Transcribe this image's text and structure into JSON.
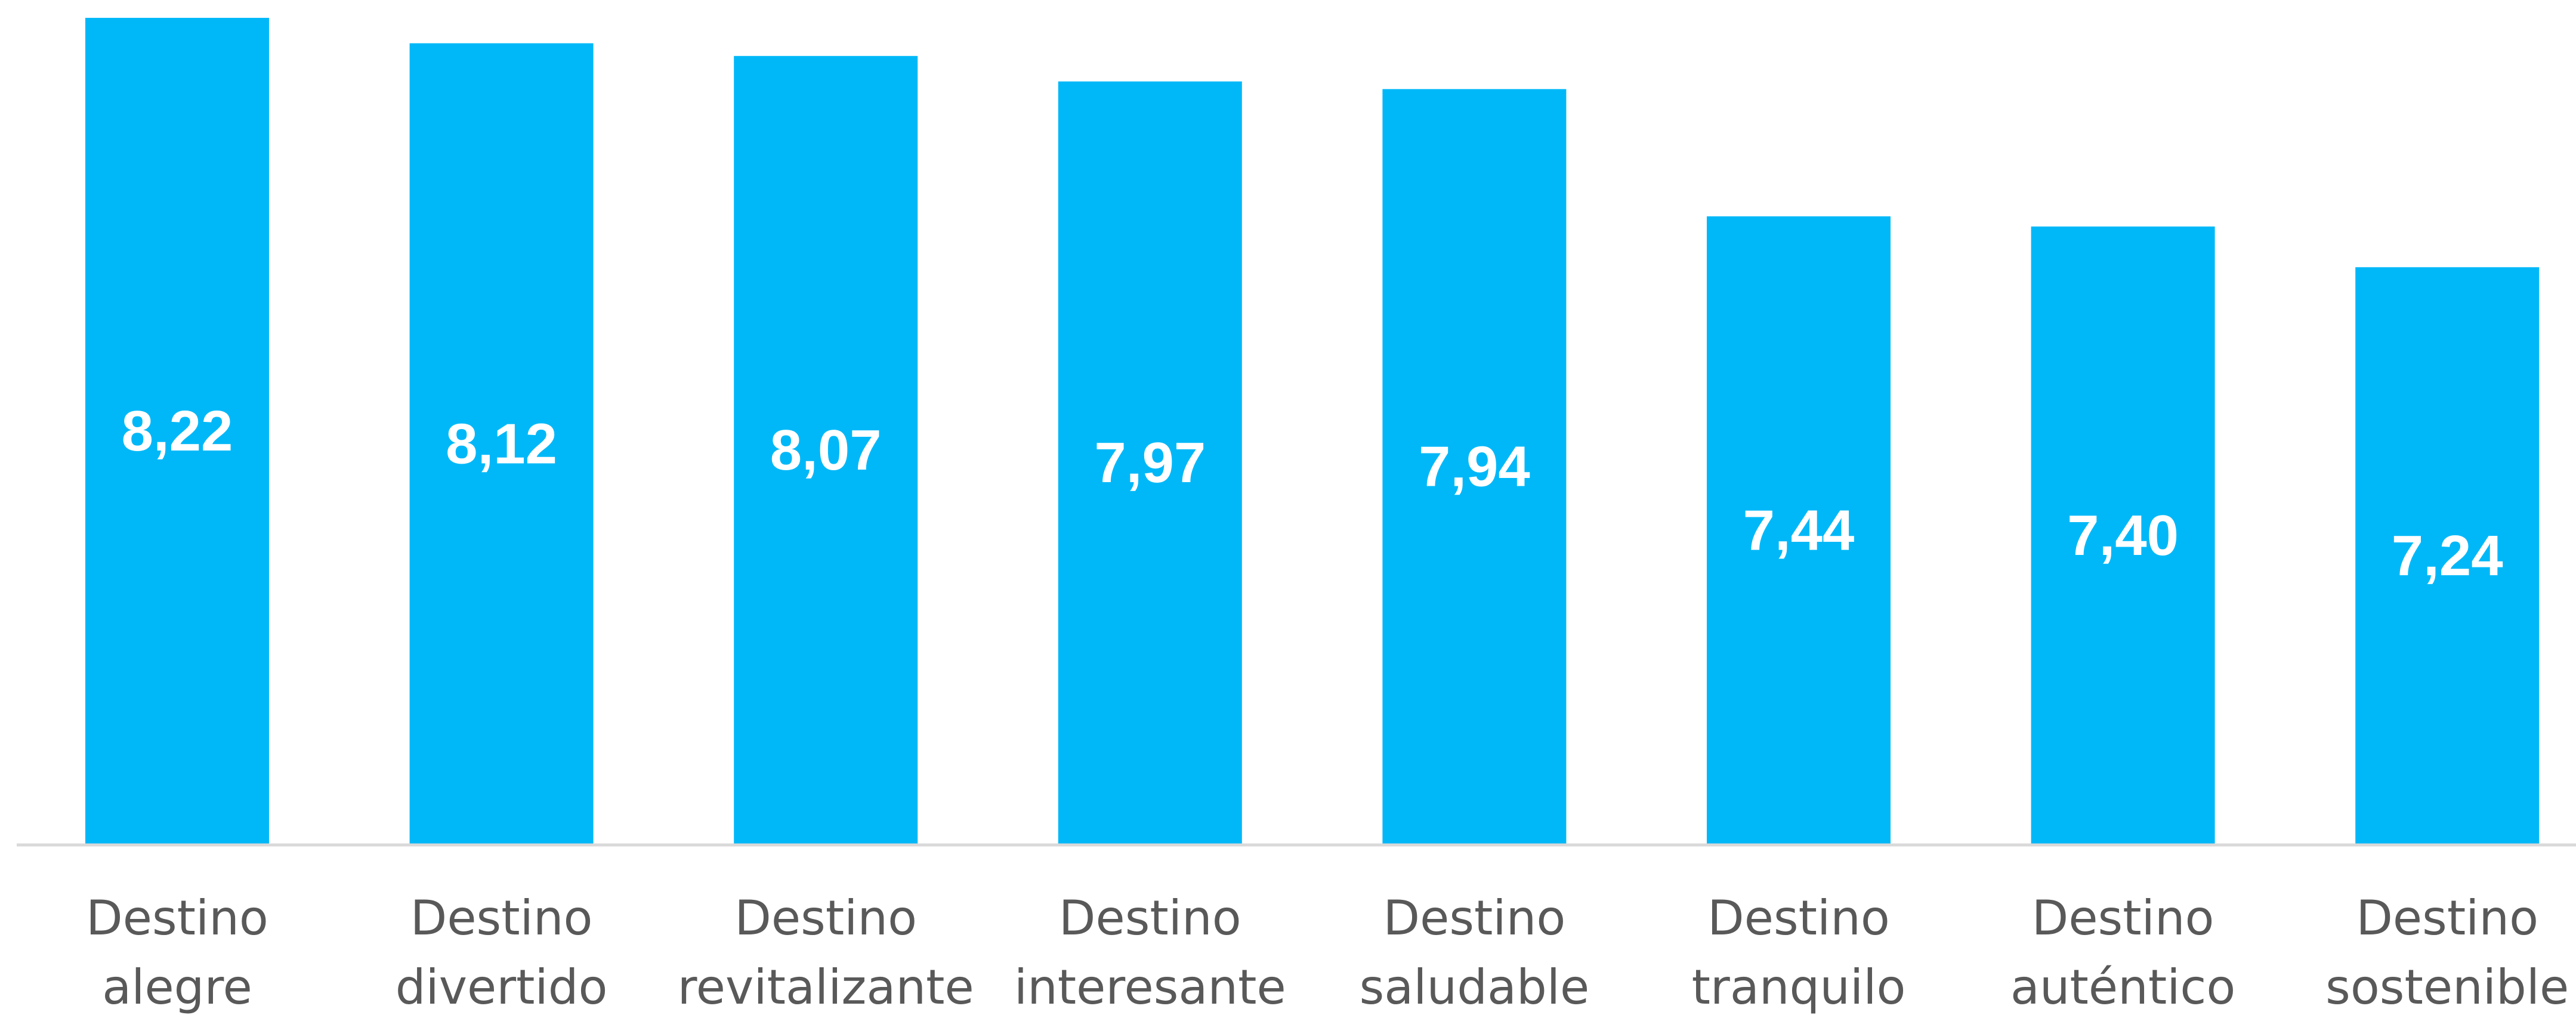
{
  "chart_data": {
    "type": "bar",
    "categories": [
      [
        "Destino",
        "alegre"
      ],
      [
        "Destino",
        "divertido"
      ],
      [
        "Destino",
        "revitalizante"
      ],
      [
        "Destino",
        "interesante"
      ],
      [
        "Destino",
        "saludable"
      ],
      [
        "Destino",
        "tranquilo"
      ],
      [
        "Destino",
        "auténtico"
      ],
      [
        "Destino",
        "sostenible"
      ]
    ],
    "values": [
      8.22,
      8.12,
      8.07,
      7.97,
      7.94,
      7.44,
      7.4,
      7.24
    ],
    "value_labels": [
      "8,22",
      "8,12",
      "8,07",
      "7,97",
      "7,94",
      "7,44",
      "7,40",
      "7,24"
    ],
    "title": "",
    "xlabel": "",
    "ylabel": "",
    "ylim": [
      4.97,
      8.29
    ],
    "grid": false,
    "legend": "none",
    "colors": {
      "bar": "#00B8F8",
      "axis": "#D9D9D9",
      "value_label": "#FFFFFF",
      "category_label": "#595959"
    }
  }
}
